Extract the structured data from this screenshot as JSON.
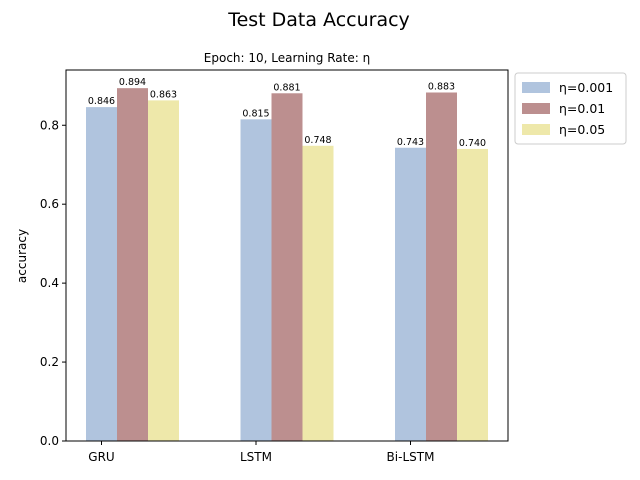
{
  "chart_data": {
    "type": "bar",
    "title": "Test Data Accuracy",
    "subtitle": "Epoch: 10, Learning Rate: η",
    "xlabel": "",
    "ylabel": "accuracy",
    "categories": [
      "GRU",
      "LSTM",
      "Bi-LSTM"
    ],
    "ylim": [
      0,
      0.94
    ],
    "yticks": [
      0.0,
      0.2,
      0.4,
      0.6,
      0.8
    ],
    "ytick_labels": [
      "0.0",
      "0.2",
      "0.4",
      "0.6",
      "0.8"
    ],
    "grid": false,
    "legend_position": "outside-top-right",
    "series": [
      {
        "name": "η=0.001",
        "color": "#b0c4de",
        "values": [
          0.846,
          0.815,
          0.743
        ],
        "labels": [
          "0.846",
          "0.815",
          "0.743"
        ]
      },
      {
        "name": "η=0.01",
        "color": "#bc8f8f",
        "values": [
          0.894,
          0.881,
          0.883
        ],
        "labels": [
          "0.894",
          "0.881",
          "0.883"
        ]
      },
      {
        "name": "η=0.05",
        "color": "#eee8aa",
        "values": [
          0.863,
          0.748,
          0.74
        ],
        "labels": [
          "0.863",
          "0.748",
          "0.740"
        ]
      }
    ]
  }
}
